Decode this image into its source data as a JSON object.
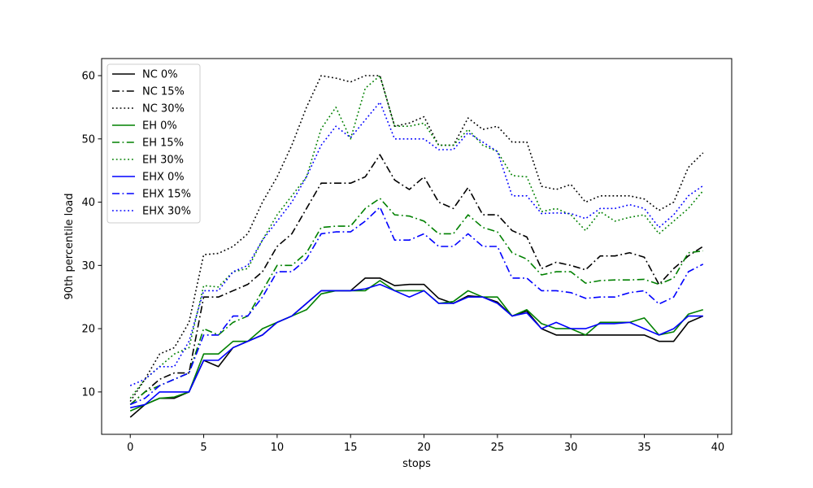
{
  "chart_data": {
    "type": "line",
    "title": "",
    "xlabel": "stops",
    "ylabel": "90th percentile load",
    "xlim": [
      -1.95,
      40.95
    ],
    "ylim": [
      3.3,
      62.7
    ],
    "xticks": [
      0,
      5,
      10,
      15,
      20,
      25,
      30,
      35,
      40
    ],
    "yticks": [
      10,
      20,
      30,
      40,
      50,
      60
    ],
    "grid": false,
    "legend_position": "top-left",
    "x": [
      0,
      1,
      2,
      3,
      4,
      5,
      6,
      7,
      8,
      9,
      10,
      11,
      12,
      13,
      14,
      15,
      16,
      17,
      18,
      19,
      20,
      21,
      22,
      23,
      24,
      25,
      26,
      27,
      28,
      29,
      30,
      31,
      32,
      33,
      34,
      35,
      36,
      37,
      38,
      39
    ],
    "series": [
      {
        "name": "NC 0%",
        "color": "#000000",
        "style": "solid",
        "values": [
          6,
          8,
          9,
          9,
          10,
          15,
          14,
          17,
          18,
          19,
          21,
          22,
          24,
          26,
          26,
          26,
          28,
          28,
          26.8,
          27,
          27,
          24.8,
          24,
          25.2,
          25,
          24.2,
          22,
          22.8,
          20,
          19,
          19,
          19,
          19,
          19,
          19,
          19,
          18,
          18,
          21,
          22
        ]
      },
      {
        "name": "NC 15%",
        "color": "#000000",
        "style": "dashdot",
        "values": [
          8,
          10,
          12,
          13,
          13,
          25,
          25,
          26,
          27,
          29,
          33,
          35,
          39,
          43,
          43,
          43,
          44,
          47.5,
          43.5,
          42,
          44,
          40,
          39,
          42.3,
          38,
          38,
          35.5,
          34.5,
          29.5,
          30.5,
          30,
          29.3,
          31.5,
          31.5,
          32,
          31.3,
          27,
          29.5,
          31.5,
          33
        ]
      },
      {
        "name": "NC 30%",
        "color": "#000000",
        "style": "dotted",
        "values": [
          8.5,
          12,
          16,
          17,
          21,
          31.7,
          31.9,
          33,
          35,
          40,
          44,
          49,
          55,
          60,
          59.6,
          59,
          60,
          60,
          52,
          52.5,
          53.5,
          49,
          49,
          53.3,
          51.5,
          52,
          49.5,
          49.5,
          42.5,
          42,
          42.8,
          40,
          41,
          41,
          41,
          40.5,
          38.7,
          40,
          45.5,
          47.8
        ]
      },
      {
        "name": "EH 0%",
        "color": "#008000",
        "style": "solid",
        "values": [
          7,
          8,
          9,
          9.2,
          10,
          16,
          16,
          18,
          18,
          20,
          21,
          22,
          23,
          25.5,
          26,
          26,
          26,
          27.6,
          26,
          26,
          26,
          24,
          24.3,
          26,
          25,
          25,
          22,
          23,
          20.8,
          20,
          20,
          19,
          21,
          21,
          21,
          21.7,
          19,
          19.5,
          22.3,
          23
        ]
      },
      {
        "name": "EH 15%",
        "color": "#008000",
        "style": "dashdot",
        "values": [
          8,
          10,
          11,
          12,
          13,
          20,
          19,
          21,
          22,
          26,
          30,
          30,
          32,
          36,
          36.2,
          36.2,
          39,
          40.6,
          38,
          37.8,
          37,
          35,
          35,
          38,
          36,
          35.3,
          32,
          31,
          28.5,
          29,
          29,
          27.2,
          27.6,
          27.7,
          27.7,
          27.8,
          27,
          28,
          32,
          32.3
        ]
      },
      {
        "name": "EH 30%",
        "color": "#008000",
        "style": "dotted",
        "values": [
          9,
          12,
          14,
          16,
          17,
          26.8,
          26.6,
          29,
          29.5,
          34,
          38,
          41,
          44,
          51.6,
          55,
          50,
          58,
          60,
          52,
          52,
          52.5,
          49,
          49,
          51.5,
          49,
          48,
          44.2,
          44,
          38.5,
          39,
          38,
          35.5,
          38.5,
          37,
          37.6,
          38,
          35,
          37,
          39,
          41.8
        ]
      },
      {
        "name": "EHX 0%",
        "color": "#0000ff",
        "style": "solid",
        "values": [
          7.5,
          8,
          10,
          10,
          10,
          15,
          15,
          17,
          18,
          19,
          21,
          22,
          24,
          26,
          26,
          26,
          26.3,
          27,
          26,
          25,
          26,
          24,
          24,
          25,
          25,
          24,
          22,
          22.5,
          20,
          21,
          20,
          20,
          20.8,
          20.8,
          21,
          20,
          19,
          20,
          22,
          22
        ]
      },
      {
        "name": "EHX 15%",
        "color": "#0000ff",
        "style": "dashdot",
        "values": [
          8,
          9,
          11,
          12,
          13,
          19,
          19,
          22,
          22,
          25,
          29,
          29,
          31,
          35,
          35.3,
          35.3,
          37,
          39.2,
          34,
          34,
          35,
          33,
          33,
          35,
          33,
          33,
          28,
          28,
          26,
          26,
          25.7,
          24.8,
          25,
          25,
          25.7,
          26,
          23.9,
          25,
          29,
          30.2
        ]
      },
      {
        "name": "EHX 30%",
        "color": "#0000ff",
        "style": "dotted",
        "values": [
          11,
          12,
          14,
          14,
          18,
          26,
          26,
          29,
          30,
          34,
          37,
          40,
          44,
          49,
          52,
          50.2,
          53,
          55.8,
          50,
          50,
          50,
          48.3,
          48.3,
          51,
          49.5,
          48,
          41,
          41,
          38.2,
          38.3,
          38.2,
          37.4,
          39,
          39,
          39.6,
          39,
          36,
          38,
          41,
          42.6
        ]
      }
    ]
  }
}
